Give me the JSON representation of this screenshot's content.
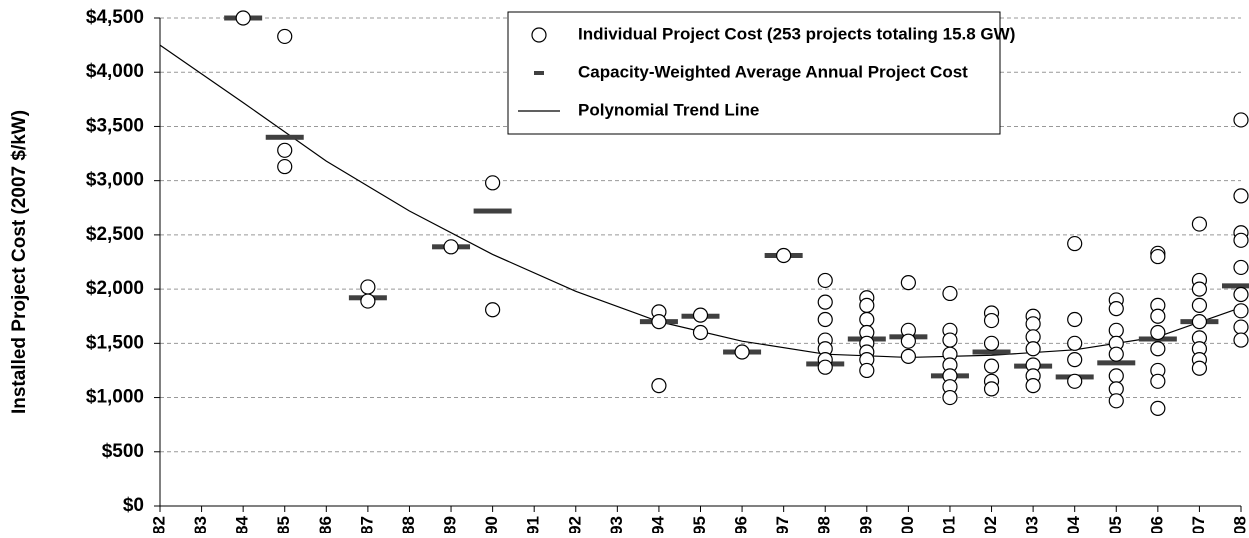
{
  "chart_data": {
    "type": "scatter",
    "ylabel": "Installed Project Cost (2007 $/kW)",
    "xlim": [
      1982,
      2008
    ],
    "xticks": [
      1982,
      1983,
      1984,
      1985,
      1986,
      1987,
      1988,
      1989,
      1990,
      1991,
      1992,
      1993,
      1994,
      1995,
      1996,
      1997,
      1998,
      1999,
      2000,
      2001,
      2002,
      2003,
      2004,
      2005,
      2006,
      2007,
      2008
    ],
    "ylim": [
      0,
      4500
    ],
    "yticks": [
      {
        "value": 0,
        "label": "$0"
      },
      {
        "value": 500,
        "label": "$500"
      },
      {
        "value": 1000,
        "label": "$1,000"
      },
      {
        "value": 1500,
        "label": "$1,500"
      },
      {
        "value": 2000,
        "label": "$2,000"
      },
      {
        "value": 2500,
        "label": "$2,500"
      },
      {
        "value": 3000,
        "label": "$3,000"
      },
      {
        "value": 3500,
        "label": "$3,500"
      },
      {
        "value": 4000,
        "label": "$4,000"
      },
      {
        "value": 4500,
        "label": "$4,500"
      }
    ],
    "grid": true,
    "legend": "upper right",
    "series": [
      {
        "name": "Individual Project Cost (253 projects totaling 15.8 GW)",
        "kind": "scatter",
        "color": "#000000",
        "x": [
          1984,
          1985,
          1985,
          1985,
          1987,
          1987,
          1989,
          1990,
          1990,
          1994,
          1994,
          1994,
          1995,
          1995,
          1996,
          1997,
          1998,
          1998,
          1998,
          1998,
          1998,
          1998,
          1998,
          1999,
          1999,
          1999,
          1999,
          1999,
          1999,
          1999,
          1999,
          2000,
          2000,
          2000,
          2000,
          2001,
          2001,
          2001,
          2001,
          2001,
          2001,
          2001,
          2001,
          2002,
          2002,
          2002,
          2002,
          2002,
          2002,
          2003,
          2003,
          2003,
          2003,
          2003,
          2003,
          2003,
          2004,
          2004,
          2004,
          2004,
          2004,
          2005,
          2005,
          2005,
          2005,
          2005,
          2005,
          2005,
          2005,
          2006,
          2006,
          2006,
          2006,
          2006,
          2006,
          2006,
          2006,
          2006,
          2007,
          2007,
          2007,
          2007,
          2007,
          2007,
          2007,
          2007,
          2007,
          2008,
          2008,
          2008,
          2008,
          2008,
          2008,
          2008,
          2008,
          2008
        ],
        "values": [
          4500,
          4330,
          3280,
          3130,
          2020,
          1890,
          2390,
          2980,
          1810,
          1790,
          1700,
          1110,
          1760,
          1600,
          1420,
          2310,
          2080,
          1880,
          1720,
          1530,
          1450,
          1350,
          1280,
          1920,
          1850,
          1720,
          1600,
          1500,
          1420,
          1350,
          1250,
          2060,
          1620,
          1520,
          1380,
          1960,
          1620,
          1530,
          1400,
          1300,
          1200,
          1100,
          1000,
          1780,
          1710,
          1500,
          1290,
          1150,
          1080,
          1750,
          1680,
          1560,
          1450,
          1300,
          1200,
          1110,
          2420,
          1720,
          1500,
          1350,
          1150,
          1900,
          1820,
          1620,
          1500,
          1400,
          1200,
          1080,
          970,
          2330,
          2300,
          1850,
          1750,
          1600,
          1450,
          1250,
          1150,
          900,
          2600,
          2080,
          2000,
          1850,
          1700,
          1550,
          1450,
          1350,
          1270,
          3560,
          2860,
          2520,
          2450,
          2200,
          1950,
          1800,
          1650,
          1530
        ]
      },
      {
        "name": "Capacity-Weighted Average Annual Project Cost",
        "kind": "dash",
        "color": "#404040",
        "x": [
          1984,
          1985,
          1987,
          1989,
          1990,
          1994,
          1995,
          1996,
          1997,
          1998,
          1999,
          2000,
          2001,
          2002,
          2003,
          2004,
          2005,
          2006,
          2007,
          2008
        ],
        "values": [
          4500,
          3400,
          1920,
          2390,
          2720,
          1700,
          1750,
          1420,
          2310,
          1310,
          1540,
          1560,
          1200,
          1420,
          1290,
          1190,
          1320,
          1540,
          1700,
          2030
        ]
      },
      {
        "name": "Polynomial Trend Line",
        "kind": "line",
        "color": "#000000",
        "x": [
          1982,
          1984,
          1986,
          1988,
          1990,
          1992,
          1994,
          1996,
          1998,
          2000,
          2002,
          2004,
          2006,
          2008
        ],
        "values": [
          4250,
          3720,
          3180,
          2720,
          2320,
          1980,
          1700,
          1520,
          1400,
          1370,
          1390,
          1440,
          1560,
          1830
        ]
      }
    ]
  }
}
